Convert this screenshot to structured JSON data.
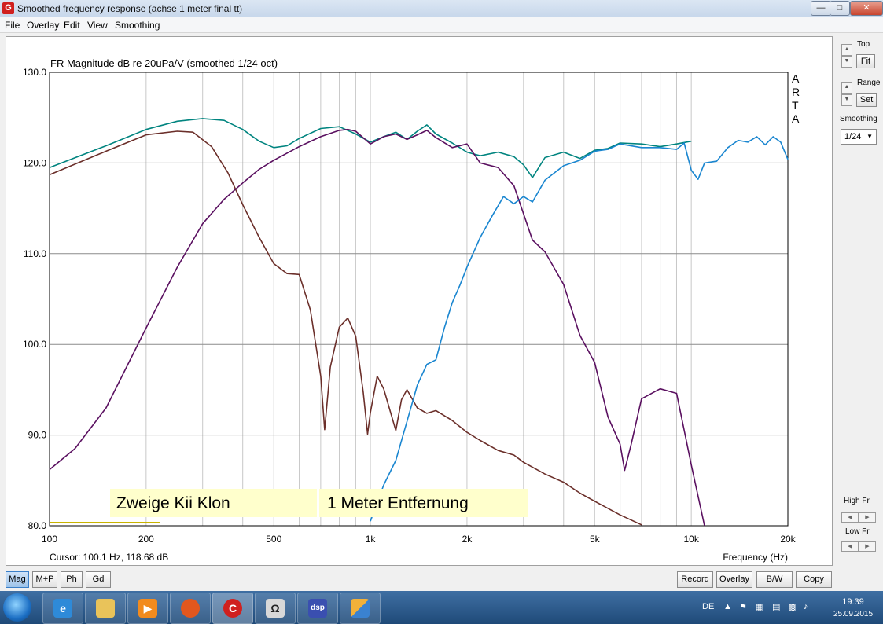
{
  "window": {
    "title": "Smoothed frequency response (achse 1 meter final tt)",
    "app_icon_letter": "G",
    "minimize": "—",
    "maximize": "□",
    "close": "✕"
  },
  "menu": [
    "File",
    "Overlay",
    "Edit",
    "View",
    "Smoothing"
  ],
  "plot": {
    "title": "FR Magnitude dB re 20uPa/V (smoothed 1/24 oct)",
    "brand_letters": [
      "A",
      "R",
      "T",
      "A"
    ],
    "cursor_text": "Cursor: 100.1 Hz, 118.68 dB",
    "xlabel": "Frequency (Hz)",
    "annotations": [
      "Zweige Kii Klon",
      "1 Meter Entfernung"
    ],
    "annotation_color": "#ffffcc"
  },
  "chart_data": {
    "type": "line",
    "title": "FR Magnitude dB re 20uPa/V (smoothed 1/24 oct)",
    "xlabel": "Frequency (Hz)",
    "ylabel": "",
    "x_scale": "log",
    "xlim": [
      100,
      20000
    ],
    "ylim": [
      80,
      130
    ],
    "x_ticks": [
      100,
      200,
      500,
      1000,
      2000,
      5000,
      10000,
      20000
    ],
    "x_tick_labels": [
      "100",
      "200",
      "500",
      "1k",
      "2k",
      "5k",
      "10k",
      "20k"
    ],
    "y_ticks": [
      80,
      90,
      100,
      110,
      120,
      130
    ],
    "y_tick_labels": [
      "80.0",
      "90.0",
      "100.0",
      "110.0",
      "120.0",
      "130.0"
    ],
    "grid": true,
    "series": [
      {
        "color": "#00847f",
        "x": [
          100,
          150,
          200,
          250,
          300,
          350,
          400,
          450,
          500,
          550,
          600,
          700,
          800,
          900,
          1000,
          1100,
          1200,
          1300,
          1400,
          1500,
          1600,
          1800,
          2000,
          2200,
          2500,
          2800,
          3000,
          3200,
          3500,
          4000,
          4500,
          5000,
          5500,
          6000,
          7000,
          8000,
          9000,
          10000
        ],
        "y": [
          119.5,
          121.9,
          123.7,
          124.6,
          124.9,
          124.7,
          123.7,
          122.4,
          121.7,
          121.9,
          122.7,
          123.8,
          124.0,
          123.2,
          122.3,
          122.9,
          123.4,
          122.6,
          123.5,
          124.2,
          123.2,
          122.2,
          121.2,
          120.8,
          121.2,
          120.7,
          119.8,
          118.4,
          120.6,
          121.2,
          120.5,
          121.4,
          121.6,
          122.2,
          122.1,
          121.8,
          122.1,
          122.4
        ]
      },
      {
        "color": "#6b2f2a",
        "x": [
          100,
          150,
          200,
          250,
          280,
          320,
          360,
          400,
          450,
          500,
          550,
          600,
          650,
          700,
          720,
          750,
          800,
          850,
          900,
          950,
          980,
          1000,
          1050,
          1100,
          1200,
          1250,
          1300,
          1400,
          1500,
          1600,
          1800,
          2000,
          2200,
          2500,
          2800,
          3000,
          3500,
          4000,
          4500,
          5000,
          6000,
          7000
        ],
        "y": [
          118.7,
          121.3,
          123.1,
          123.5,
          123.4,
          121.8,
          118.9,
          115.4,
          111.8,
          108.9,
          107.8,
          107.7,
          103.8,
          96.5,
          90.6,
          97.5,
          101.9,
          102.9,
          100.9,
          94.7,
          90.1,
          92.5,
          96.5,
          95.1,
          90.5,
          93.9,
          95.0,
          93.0,
          92.4,
          92.7,
          91.6,
          90.3,
          89.4,
          88.3,
          87.8,
          87.0,
          85.7,
          84.8,
          83.6,
          82.7,
          81.2,
          80.1
        ]
      },
      {
        "color": "#5a1060",
        "x": [
          100,
          120,
          150,
          200,
          250,
          300,
          350,
          400,
          450,
          500,
          600,
          700,
          800,
          850,
          900,
          1000,
          1100,
          1200,
          1300,
          1400,
          1500,
          1600,
          1800,
          2000,
          2200,
          2500,
          2800,
          3000,
          3200,
          3500,
          4000,
          4500,
          5000,
          5500,
          6000,
          6200,
          6500,
          7000,
          8000,
          9000,
          10000,
          11000
        ],
        "y": [
          86.2,
          88.5,
          93.0,
          101.8,
          108.5,
          113.3,
          116.0,
          117.8,
          119.3,
          120.3,
          121.8,
          122.9,
          123.6,
          123.7,
          123.5,
          122.1,
          122.9,
          123.2,
          122.6,
          123.1,
          123.6,
          122.8,
          121.7,
          122.1,
          120.0,
          119.5,
          117.5,
          114.4,
          111.5,
          110.2,
          106.6,
          101.0,
          98.0,
          92.0,
          89.0,
          86.1,
          89.0,
          94.0,
          95.1,
          94.6,
          86.7,
          80.0
        ]
      },
      {
        "color": "#1a86d0",
        "x": [
          1000,
          1100,
          1200,
          1300,
          1400,
          1500,
          1600,
          1700,
          1800,
          1900,
          2000,
          2200,
          2400,
          2600,
          2800,
          3000,
          3200,
          3500,
          4000,
          4500,
          5000,
          5500,
          6000,
          7000,
          8000,
          9000,
          9500,
          10000,
          10500,
          11000,
          12000,
          13000,
          14000,
          15000,
          16000,
          17000,
          18000,
          19000,
          20000
        ],
        "y": [
          80.5,
          84.5,
          87.2,
          91.5,
          95.5,
          97.8,
          98.3,
          101.8,
          104.6,
          106.5,
          108.5,
          111.8,
          114.2,
          116.3,
          115.5,
          116.3,
          115.7,
          118.1,
          119.7,
          120.3,
          121.3,
          121.5,
          122.1,
          121.7,
          121.7,
          121.5,
          122.2,
          119.2,
          118.2,
          120.0,
          120.2,
          121.7,
          122.5,
          122.3,
          122.9,
          122.0,
          122.9,
          122.3,
          120.4
        ]
      }
    ]
  },
  "right_panel": {
    "top_label": "Top",
    "fit_label": "Fit",
    "range_label": "Range",
    "set_label": "Set",
    "smoothing_label": "Smoothing",
    "smoothing_value": "1/24",
    "high_fr_label": "High Fr",
    "low_fr_label": "Low Fr"
  },
  "bottom_buttons_left": [
    "Mag",
    "M+P",
    "Ph",
    "Gd"
  ],
  "bottom_buttons_right": [
    "Record",
    "Overlay",
    "B/W",
    "Copy"
  ],
  "taskbar": {
    "language": "DE",
    "time": "19:39",
    "date": "25.09.2015"
  }
}
